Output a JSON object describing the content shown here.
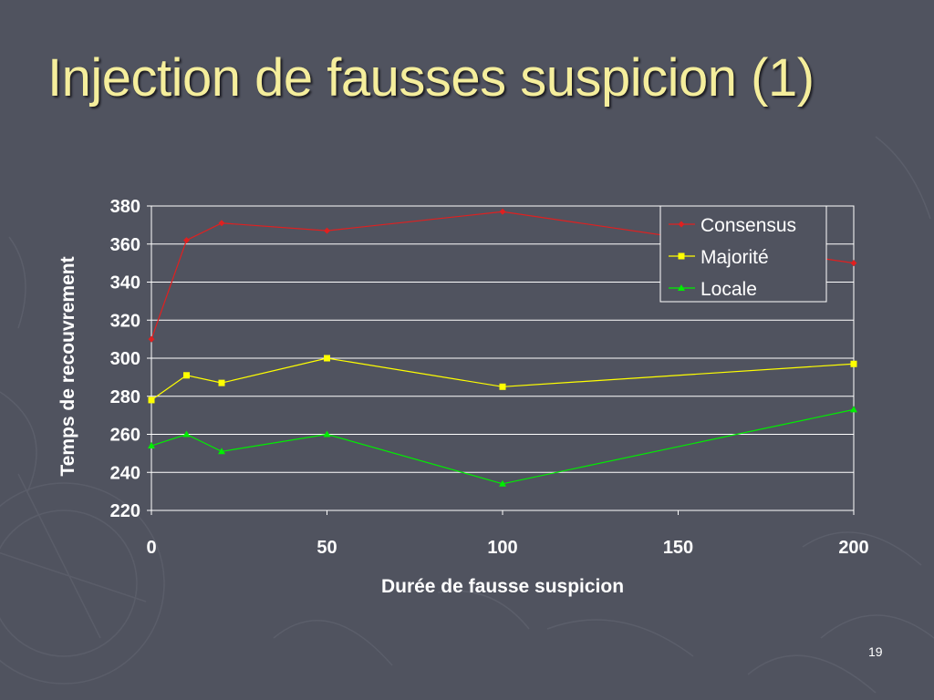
{
  "slide": {
    "title": "Injection de fausses suspicion (1)",
    "page_number": "19",
    "background": "#50535f",
    "title_color": "#f5ee9c"
  },
  "chart_data": {
    "type": "line",
    "title": "",
    "xlabel": "Durée de fausse suspicion",
    "ylabel": "Temps de recouvrement",
    "x": [
      0,
      10,
      20,
      50,
      100,
      200
    ],
    "xlim": [
      0,
      200
    ],
    "ylim": [
      220,
      380
    ],
    "x_ticks": [
      "0",
      "50",
      "100",
      "150",
      "200"
    ],
    "y_ticks": [
      "380",
      "360",
      "340",
      "320",
      "300",
      "280",
      "260",
      "240",
      "220"
    ],
    "grid": "horizontal",
    "legend_position": "top-right",
    "series": [
      {
        "name": "Consensus",
        "color": "#e02020",
        "marker": "diamond",
        "values": [
          310,
          362,
          371,
          367,
          377,
          350
        ]
      },
      {
        "name": "Majorité",
        "color": "#ffff00",
        "marker": "square",
        "values": [
          278,
          291,
          287,
          300,
          285,
          297
        ]
      },
      {
        "name": "Locale",
        "color": "#00ee00",
        "marker": "triangle",
        "values": [
          254,
          260,
          251,
          260,
          234,
          273
        ]
      }
    ]
  }
}
